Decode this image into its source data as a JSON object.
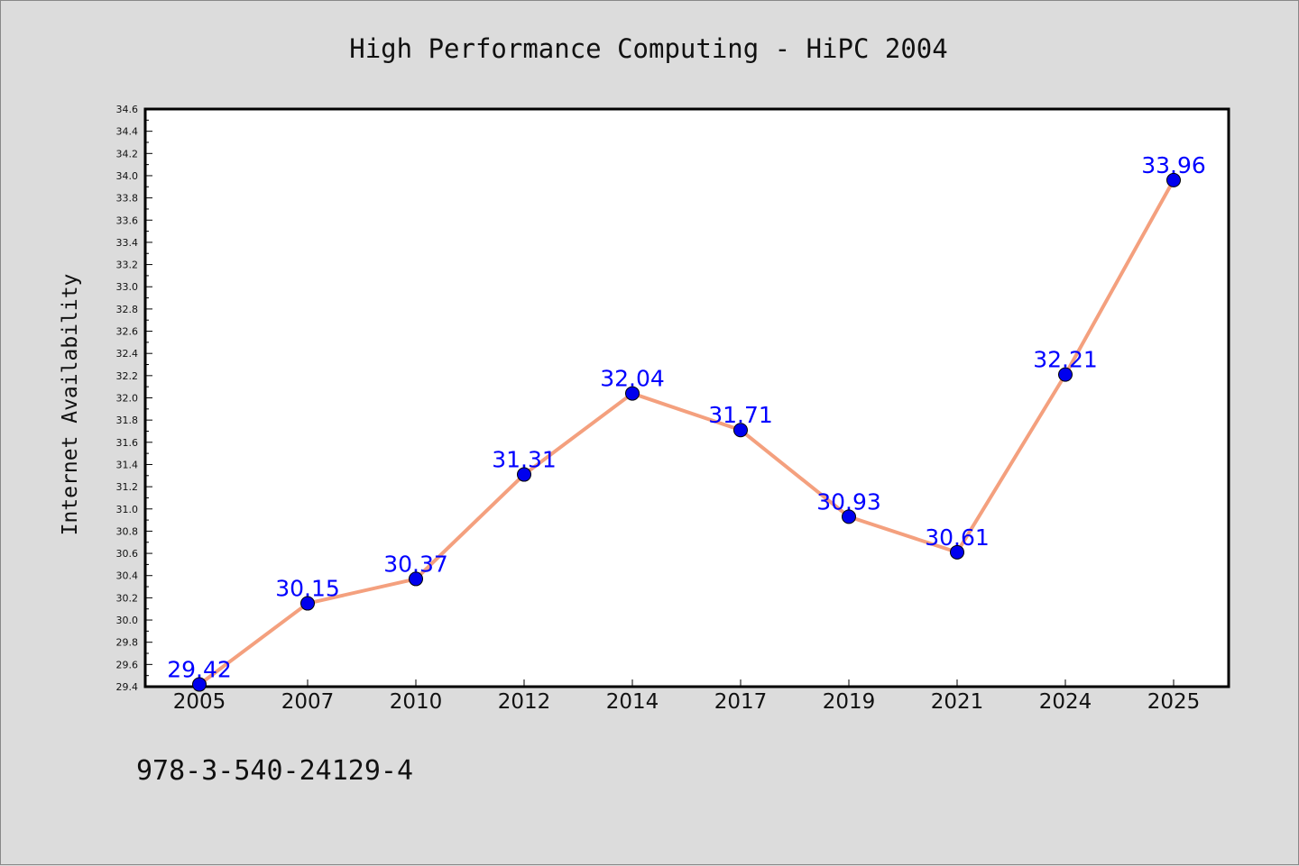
{
  "chart_data": {
    "type": "line",
    "title": "High Performance Computing - HiPC 2004",
    "xlabel": "",
    "ylabel": "Internet Availability",
    "categories": [
      "2005",
      "2007",
      "2010",
      "2012",
      "2014",
      "2017",
      "2019",
      "2021",
      "2024",
      "2025"
    ],
    "series": [
      {
        "values": [
          29.42,
          30.15,
          30.37,
          31.31,
          32.04,
          31.71,
          30.93,
          30.61,
          32.21,
          33.96
        ],
        "labels": [
          "29.42",
          "30.15",
          "30.37",
          "31.31",
          "32.04",
          "31.71",
          "30.93",
          "30.61",
          "32.21",
          "33.96"
        ]
      }
    ],
    "ylim": [
      29.4,
      34.6
    ],
    "ytick_step": 0.2,
    "ytick_labels": [
      "29.4",
      "29.6",
      "29.8",
      "30.0",
      "30.2",
      "30.4",
      "30.6",
      "30.8",
      "31.0",
      "31.2",
      "31.4",
      "31.6",
      "31.8",
      "32.0",
      "32.2",
      "32.4",
      "32.6",
      "32.8",
      "33.0",
      "33.2",
      "33.4",
      "33.6",
      "33.8",
      "34.0",
      "34.2",
      "34.4",
      "34.6"
    ],
    "grid": false,
    "legend": "none",
    "colors": {
      "line": "#f4a07e",
      "marker": "#0000ee",
      "data_label": "#0000ff",
      "plot_bg": "#ffffff",
      "page_bg": "#dcdcdc"
    }
  },
  "footnote": "978-3-540-24129-4"
}
